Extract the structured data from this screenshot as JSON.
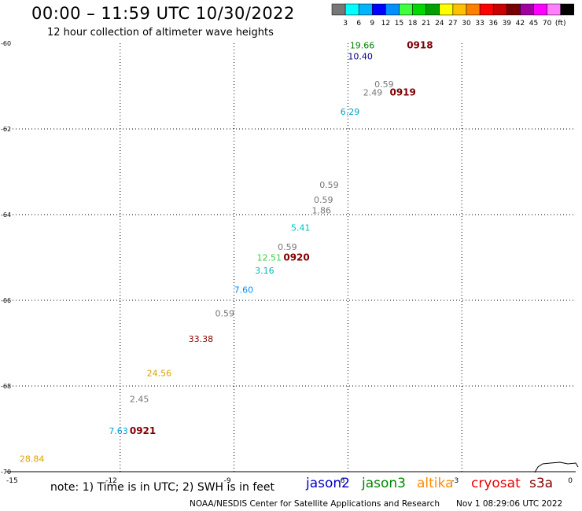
{
  "header": {
    "title": "00:00 – 11:59 UTC 10/30/2022",
    "subtitle": "12 hour collection of altimeter wave heights"
  },
  "colorbar": {
    "colors": [
      "#777777",
      "#00ffff",
      "#00b4ff",
      "#0000ff",
      "#0090ff",
      "#40ff40",
      "#00d800",
      "#00a000",
      "#ffff00",
      "#ffc000",
      "#ff8000",
      "#ff0000",
      "#c80000",
      "#780000",
      "#a000a0",
      "#ff00ff",
      "#ff80ff",
      "#000000"
    ],
    "labels": [
      "3",
      "6",
      "9",
      "12",
      "15",
      "18",
      "21",
      "24",
      "27",
      "30",
      "33",
      "36",
      "39",
      "42",
      "45",
      "70",
      "(ft)"
    ]
  },
  "chart_data": {
    "type": "scatter",
    "xlim": [
      -15,
      0
    ],
    "ylim": [
      -70,
      -60
    ],
    "x_ticks": [
      -15,
      -12,
      -9,
      -6,
      -3,
      0
    ],
    "y_ticks": [
      -60,
      -62,
      -64,
      -66,
      -68,
      -70
    ],
    "grid": true,
    "points": [
      {
        "x": -5.95,
        "y": -60.05,
        "label": "19.66",
        "color": "#008000"
      },
      {
        "x": -4.45,
        "y": -60.05,
        "label": "0918",
        "color": "#800000",
        "bold": true
      },
      {
        "x": -6.0,
        "y": -60.3,
        "label": "10.40",
        "color": "#00008b"
      },
      {
        "x": -5.3,
        "y": -60.95,
        "label": "0.59",
        "color": "#777777"
      },
      {
        "x": -5.6,
        "y": -61.15,
        "label": "2.49",
        "color": "#777777"
      },
      {
        "x": -4.9,
        "y": -61.15,
        "label": "0919",
        "color": "#800000",
        "bold": true
      },
      {
        "x": -6.2,
        "y": -61.6,
        "label": "6.29",
        "color": "#00a0d0"
      },
      {
        "x": -6.75,
        "y": -63.3,
        "label": "0.59",
        "color": "#777777"
      },
      {
        "x": -6.9,
        "y": -63.65,
        "label": "0.59",
        "color": "#777777"
      },
      {
        "x": -6.95,
        "y": -63.9,
        "label": "1.86",
        "color": "#777777"
      },
      {
        "x": -7.5,
        "y": -64.3,
        "label": "5.41",
        "color": "#00c0c0"
      },
      {
        "x": -7.85,
        "y": -64.75,
        "label": "0.59",
        "color": "#777777"
      },
      {
        "x": -8.4,
        "y": -65.0,
        "label": "12.51",
        "color": "#40cc40"
      },
      {
        "x": -7.7,
        "y": -65.0,
        "label": "0920",
        "color": "#800000",
        "bold": true
      },
      {
        "x": -8.45,
        "y": -65.3,
        "label": "3.16",
        "color": "#00b8b8"
      },
      {
        "x": -9.0,
        "y": -65.75,
        "label": "7.60",
        "color": "#0090ff"
      },
      {
        "x": -9.5,
        "y": -66.3,
        "label": "0.59",
        "color": "#777777"
      },
      {
        "x": -10.2,
        "y": -66.9,
        "label": "33.38",
        "color": "#8b0000"
      },
      {
        "x": -11.3,
        "y": -67.7,
        "label": "24.56",
        "color": "#e0a000"
      },
      {
        "x": -11.75,
        "y": -68.3,
        "label": "2.45",
        "color": "#777777"
      },
      {
        "x": -12.3,
        "y": -69.05,
        "label": "7.63",
        "color": "#00a0d0"
      },
      {
        "x": -11.75,
        "y": -69.05,
        "label": "0921",
        "color": "#800000",
        "bold": true
      },
      {
        "x": -14.65,
        "y": -69.7,
        "label": "28.84",
        "color": "#e0a000"
      }
    ]
  },
  "axis_labels": {
    "x": [
      "-15",
      "-12",
      "-9",
      "-6",
      "-3",
      "0"
    ],
    "y": [
      "-60",
      "-62",
      "-64",
      "-66",
      "-68",
      "-70"
    ]
  },
  "footer": {
    "note": "note: 1) Time is in UTC; 2) SWH is in feet",
    "satellites": [
      {
        "name": "jason2",
        "color": "#0000cc"
      },
      {
        "name": "jason3",
        "color": "#008800"
      },
      {
        "name": "altika",
        "color": "#ff8c00"
      },
      {
        "name": "cryosat",
        "color": "#ee0000"
      },
      {
        "name": "s3a",
        "color": "#880000"
      }
    ],
    "credit": "NOAA/NESDIS Center for Satellite Applications and Research",
    "timestamp": "Nov  1 08:29:06 UTC 2022"
  }
}
